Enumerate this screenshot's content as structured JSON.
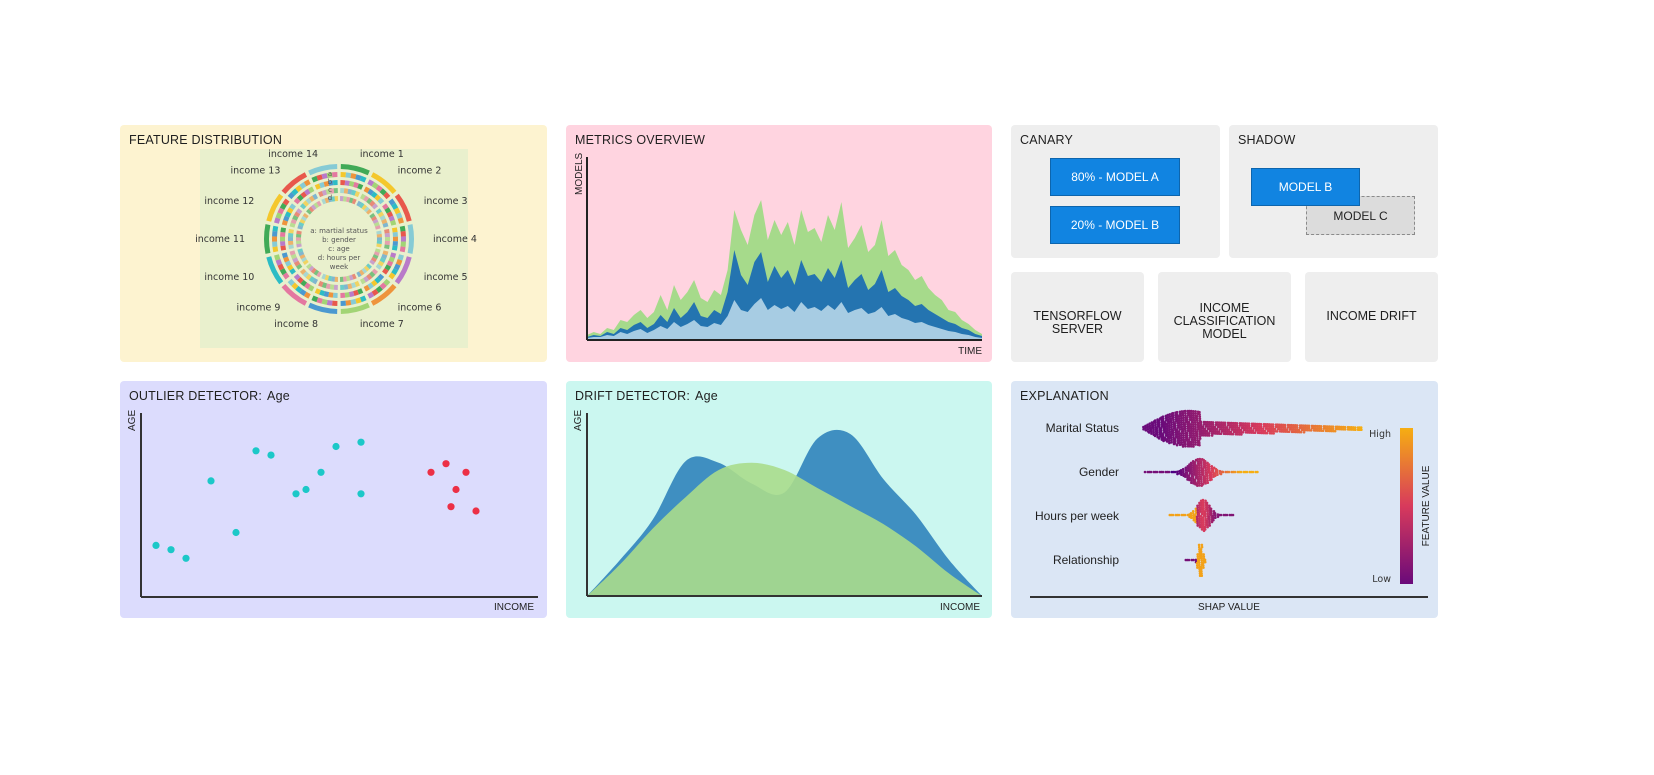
{
  "panels": {
    "feature_distribution": {
      "title": "FEATURE DISTRIBUTION",
      "ring_labels": [
        "income 1",
        "income 2",
        "income 3",
        "income 4",
        "income 5",
        "income 6",
        "income 7",
        "income 8",
        "income 9",
        "income 10",
        "income 11",
        "income 12",
        "income 13",
        "income 14"
      ],
      "ring_keys": [
        "a",
        "b",
        "c",
        "d"
      ],
      "legend": [
        "a: martial status",
        "b: gender",
        "c: age",
        "d: hours per",
        "week"
      ]
    },
    "metrics_overview": {
      "title": "METRICS OVERVIEW",
      "ylabel": "MODELS",
      "xlabel": "TIME"
    },
    "canary": {
      "title": "CANARY",
      "model_a": "80% - MODEL A",
      "model_b": "20% - MODEL B"
    },
    "shadow": {
      "title": "SHADOW",
      "model_b": "MODEL B",
      "model_c": "MODEL C"
    },
    "tensorflow": {
      "label": "TENSORFLOW SERVER"
    },
    "income_model": {
      "label_lines": [
        "INCOME",
        "CLASSIFICATION",
        "MODEL"
      ]
    },
    "income_drift": {
      "label": "INCOME DRIFT"
    },
    "outlier": {
      "title": "OUTLIER DETECTOR:",
      "feature": "Age",
      "ylabel": "AGE",
      "xlabel": "INCOME"
    },
    "drift": {
      "title": "DRIFT DETECTOR:",
      "feature": "Age",
      "ylabel": "AGE",
      "xlabel": "INCOME"
    },
    "explanation": {
      "title": "EXPLANATION",
      "features": [
        "Marital Status",
        "Gender",
        "Hours per week",
        "Relationship"
      ],
      "xlabel": "SHAP VALUE",
      "colorbar_label": "FEATURE VALUE",
      "high": "High",
      "low": "Low"
    }
  },
  "colors": {
    "yellow_panel": "#fdf3d0",
    "pink_panel": "#ffd4e0",
    "gray_panel": "#eeeeee",
    "lavender_panel": "#dcdcfd",
    "cyan_panel": "#cbf7f0",
    "blue_panel": "#dbe6f5",
    "accent_blue": "#1184e1",
    "inlier": "#1cc8c8",
    "outlier": "#ec3046",
    "dist_blue": "#3f8fc1",
    "dist_green": "#a5d98b"
  },
  "chart_data": [
    {
      "type": "area",
      "title": "",
      "xlabel": "TIME",
      "ylabel": "MODELS",
      "x": [
        1,
        2,
        3,
        4,
        5,
        6,
        7,
        8,
        9,
        10,
        11,
        12,
        13,
        14,
        15,
        16,
        17,
        18,
        19,
        20,
        21,
        22,
        23,
        24,
        25,
        26,
        27,
        28,
        29,
        30,
        31,
        32,
        33,
        34,
        35,
        36,
        37,
        38,
        39,
        40,
        41,
        42,
        43,
        44,
        45,
        46,
        47,
        48,
        49,
        50,
        51,
        52,
        53,
        54,
        55,
        56,
        57,
        58,
        59,
        60
      ],
      "series": [
        {
          "values": [
            5,
            8,
            6,
            12,
            10,
            20,
            18,
            25,
            30,
            22,
            28,
            45,
            30,
            55,
            40,
            48,
            60,
            42,
            38,
            50,
            45,
            70,
            130,
            110,
            95,
            125,
            140,
            100,
            120,
            105,
            118,
            95,
            130,
            108,
            112,
            98,
            125,
            110,
            138,
            92,
            102,
            115,
            88,
            95,
            120,
            84,
            90,
            75,
            70,
            60,
            64,
            52,
            45,
            40,
            30,
            28,
            20,
            16,
            10,
            6
          ]
        },
        {
          "values": [
            3,
            5,
            4,
            8,
            6,
            12,
            10,
            15,
            18,
            12,
            16,
            25,
            18,
            32,
            22,
            28,
            38,
            24,
            22,
            30,
            26,
            48,
            90,
            65,
            55,
            78,
            88,
            58,
            74,
            62,
            70,
            55,
            80,
            64,
            66,
            58,
            72,
            62,
            80,
            52,
            60,
            66,
            50,
            56,
            70,
            48,
            52,
            44,
            40,
            34,
            36,
            30,
            26,
            22,
            18,
            16,
            12,
            10,
            6,
            4
          ]
        },
        {
          "values": [
            2,
            3,
            3,
            5,
            4,
            8,
            6,
            9,
            11,
            7,
            10,
            14,
            11,
            18,
            13,
            16,
            20,
            14,
            13,
            17,
            15,
            24,
            40,
            30,
            28,
            36,
            42,
            30,
            35,
            31,
            34,
            28,
            38,
            31,
            33,
            29,
            35,
            30,
            38,
            27,
            30,
            32,
            26,
            28,
            33,
            24,
            26,
            22,
            20,
            17,
            18,
            15,
            13,
            11,
            9,
            8,
            6,
            5,
            3,
            2
          ]
        }
      ]
    },
    {
      "type": "scatter",
      "title": "",
      "xlabel": "INCOME",
      "ylabel": "AGE",
      "series": [
        {
          "points": [
            [
              3,
              12
            ],
            [
              6,
              11
            ],
            [
              9,
              9
            ],
            [
              14,
              27
            ],
            [
              19,
              15
            ],
            [
              23,
              34
            ],
            [
              26,
              33
            ],
            [
              31,
              24
            ],
            [
              33,
              25
            ],
            [
              36,
              29
            ],
            [
              39,
              35
            ],
            [
              44,
              36
            ],
            [
              44,
              24
            ]
          ]
        },
        {
          "points": [
            [
              58,
              29
            ],
            [
              61,
              31
            ],
            [
              62,
              21
            ],
            [
              63,
              25
            ],
            [
              65,
              29
            ],
            [
              67,
              20
            ]
          ]
        }
      ]
    },
    {
      "type": "area",
      "title": "",
      "xlabel": "INCOME",
      "ylabel": "AGE",
      "series": [
        {
          "values": [
            0,
            40,
            85,
            150,
            148,
            125,
            115,
            175,
            180,
            130,
            90,
            40,
            0
          ]
        },
        {
          "values": [
            0,
            35,
            75,
            110,
            140,
            148,
            140,
            120,
            100,
            80,
            55,
            25,
            0
          ]
        }
      ]
    },
    {
      "type": "scatter",
      "title": "",
      "xlabel": "SHAP VALUE",
      "ylabel": "",
      "categories": [
        "Marital Status",
        "Gender",
        "Hours per week",
        "Relationship"
      ]
    }
  ]
}
